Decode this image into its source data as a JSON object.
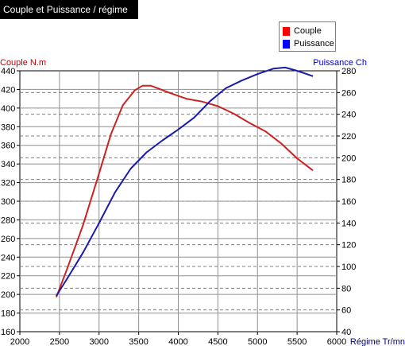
{
  "title": "Couple et Puissance / régime",
  "legend": [
    {
      "label": "Couple",
      "color": "#ff0000"
    },
    {
      "label": "Puissance",
      "color": "#0000ff"
    }
  ],
  "chart_data": {
    "type": "line",
    "title": "Couple et Puissance / régime",
    "xlabel": "Régime Tr/mn",
    "ylabel_left": "Couple N.m",
    "ylabel_right": "Puissance Ch",
    "xlim": [
      2000,
      6000
    ],
    "ylim_left": [
      160,
      440
    ],
    "ylim_right": [
      40,
      280
    ],
    "x_ticks": [
      "2000",
      "2500",
      "3000",
      "3500",
      "4000",
      "4500",
      "5000",
      "5500",
      "6000"
    ],
    "y_left_ticks": [
      "160",
      "180",
      "200",
      "220",
      "240",
      "260",
      "280",
      "300",
      "320",
      "340",
      "360",
      "380",
      "400",
      "420",
      "440"
    ],
    "y_right_ticks": [
      "40",
      "60",
      "80",
      "100",
      "120",
      "140",
      "160",
      "180",
      "200",
      "220",
      "240",
      "260",
      "280"
    ],
    "grid": true,
    "legend_position": "top-right",
    "series": [
      {
        "name": "Couple",
        "axis": "left",
        "color": "#cc2222",
        "x": [
          2460,
          2600,
          2800,
          3000,
          3150,
          3300,
          3450,
          3550,
          3650,
          3750,
          3900,
          4100,
          4300,
          4500,
          4700,
          4900,
          5100,
          5300,
          5500,
          5700
        ],
        "y": [
          197,
          228,
          275,
          330,
          372,
          403,
          419,
          424,
          424,
          421,
          416,
          410,
          407,
          402,
          394,
          384,
          375,
          362,
          346,
          333
        ]
      },
      {
        "name": "Puissance",
        "axis": "right",
        "color": "#1a1aaa",
        "x": [
          2460,
          2600,
          2800,
          3000,
          3200,
          3400,
          3600,
          3800,
          4000,
          4200,
          4400,
          4600,
          4800,
          5000,
          5200,
          5350,
          5500,
          5700
        ],
        "y": [
          73,
          89,
          113,
          140,
          168,
          190,
          205,
          216,
          226,
          237,
          252,
          264,
          271,
          277,
          282,
          283,
          280,
          275
        ]
      }
    ]
  }
}
